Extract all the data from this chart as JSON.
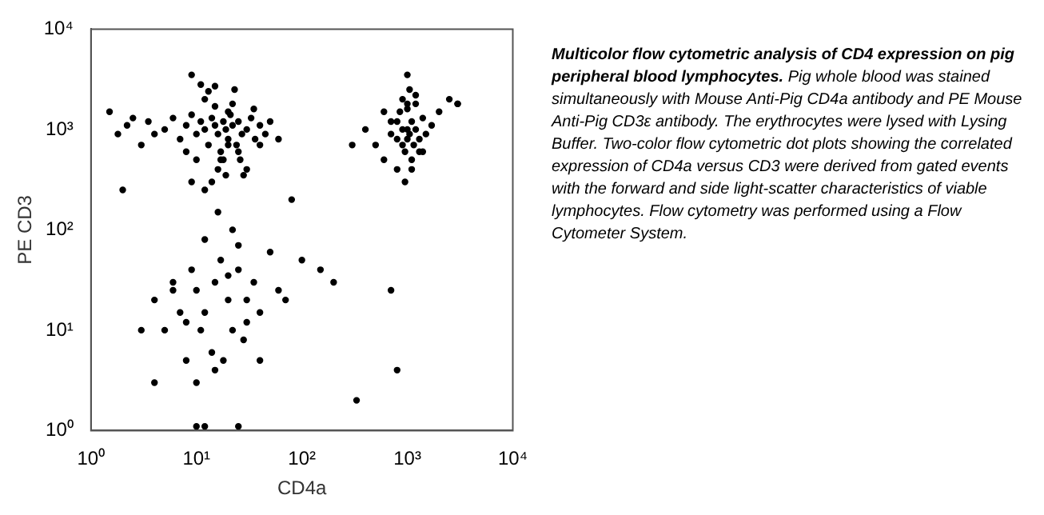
{
  "chart_data": {
    "type": "scatter",
    "title": "Multicolor flow cytometric analysis of CD4 expression on pig peripheral blood lymphocytes.",
    "annotations": [
      "Pig whole blood was stained simultaneously with Mouse Anti-Pig CD4a antibody and PE Mouse Anti-Pig CD3ε antibody. The erythrocytes were lysed with Lysing Buffer. Two-color flow cytometric dot plots showing the correlated expression of CD4a versus CD3 were derived from gated events with the forward and side light-scatter characteristics of viable lymphocytes. Flow cytometry was performed using a Flow Cytometer System."
    ],
    "xlabel": "CD4a",
    "ylabel": "PE CD3",
    "log": "xy",
    "marker": "circle",
    "xlim": [
      1,
      10000
    ],
    "ylim": [
      1,
      10000
    ],
    "xticks": [
      {
        "value": 1,
        "label": "10⁰"
      },
      {
        "value": 10,
        "label": "10¹"
      },
      {
        "value": 100,
        "label": "10²"
      },
      {
        "value": 1000,
        "label": "10³"
      },
      {
        "value": 10000,
        "label": "10⁴"
      }
    ],
    "yticks": [
      {
        "value": 1,
        "label": "10⁰"
      },
      {
        "value": 10,
        "label": "10¹"
      },
      {
        "value": 100,
        "label": "10²"
      },
      {
        "value": 1000,
        "label": "10³"
      },
      {
        "value": 10000,
        "label": "10⁴"
      }
    ],
    "series": [
      {
        "color": "#000000",
        "x": [
          1.5,
          1.8,
          2.2,
          2.5,
          3,
          3.5,
          4,
          5,
          6,
          7,
          8,
          9,
          10,
          11,
          12,
          13,
          14,
          15,
          16,
          17,
          18,
          19,
          20,
          21,
          22,
          24,
          25,
          27,
          30,
          33,
          36,
          40,
          45,
          50,
          60,
          8,
          10,
          12,
          15,
          18,
          20,
          25,
          30,
          35,
          13,
          16,
          19,
          22,
          26,
          11,
          14,
          17,
          20,
          23,
          28,
          9,
          12,
          15,
          40,
          2,
          500,
          600,
          700,
          800,
          850,
          900,
          950,
          1000,
          1050,
          1100,
          1150,
          1200,
          1300,
          1400,
          1500,
          1700,
          2000,
          2500,
          3000,
          800,
          900,
          1000,
          1100,
          1200,
          950,
          1050,
          700,
          1300,
          600,
          1000,
          1100,
          900,
          1200,
          800,
          1000,
          1400,
          400,
          300,
          1000,
          4,
          5,
          6,
          7,
          8,
          9,
          10,
          11,
          12,
          14,
          15,
          17,
          20,
          22,
          25,
          28,
          30,
          35,
          40,
          50,
          60,
          10,
          15,
          20,
          25,
          30,
          12,
          18,
          8,
          6,
          3,
          4,
          22,
          16,
          10,
          100,
          150,
          200,
          80,
          70,
          3000,
          9,
          330,
          800,
          700,
          25,
          12,
          40
        ],
        "values": [
          1500,
          900,
          1100,
          1300,
          700,
          1200,
          900,
          1000,
          1300,
          800,
          1100,
          1400,
          900,
          1200,
          1000,
          700,
          1300,
          1100,
          900,
          600,
          1200,
          1000,
          800,
          1400,
          1100,
          700,
          1200,
          900,
          1000,
          1300,
          800,
          1100,
          900,
          1200,
          800,
          600,
          500,
          2000,
          1700,
          500,
          1500,
          600,
          400,
          1600,
          2400,
          400,
          350,
          1800,
          500,
          2800,
          300,
          500,
          700,
          2500,
          350,
          300,
          250,
          2700,
          700,
          250,
          700,
          500,
          1200,
          800,
          1500,
          1000,
          600,
          1000,
          900,
          1200,
          700,
          1000,
          800,
          1300,
          900,
          1100,
          1500,
          2000,
          1800,
          400,
          2000,
          1600,
          500,
          2200,
          300,
          2500,
          900,
          600,
          1500,
          800,
          400,
          700,
          1800,
          1200,
          3500,
          600,
          1000,
          700,
          1800,
          20,
          10,
          30,
          15,
          5,
          40,
          25,
          10,
          15,
          6,
          30,
          50,
          20,
          10,
          40,
          8,
          20,
          30,
          15,
          60,
          25,
          3,
          4,
          35,
          70,
          12,
          80,
          5,
          12,
          25,
          10,
          3,
          100,
          150,
          1.1,
          50,
          40,
          30,
          200,
          20,
          1800,
          3500,
          2,
          4,
          25,
          1.1,
          1.1,
          5
        ]
      }
    ],
    "grid": false,
    "legend": false
  }
}
